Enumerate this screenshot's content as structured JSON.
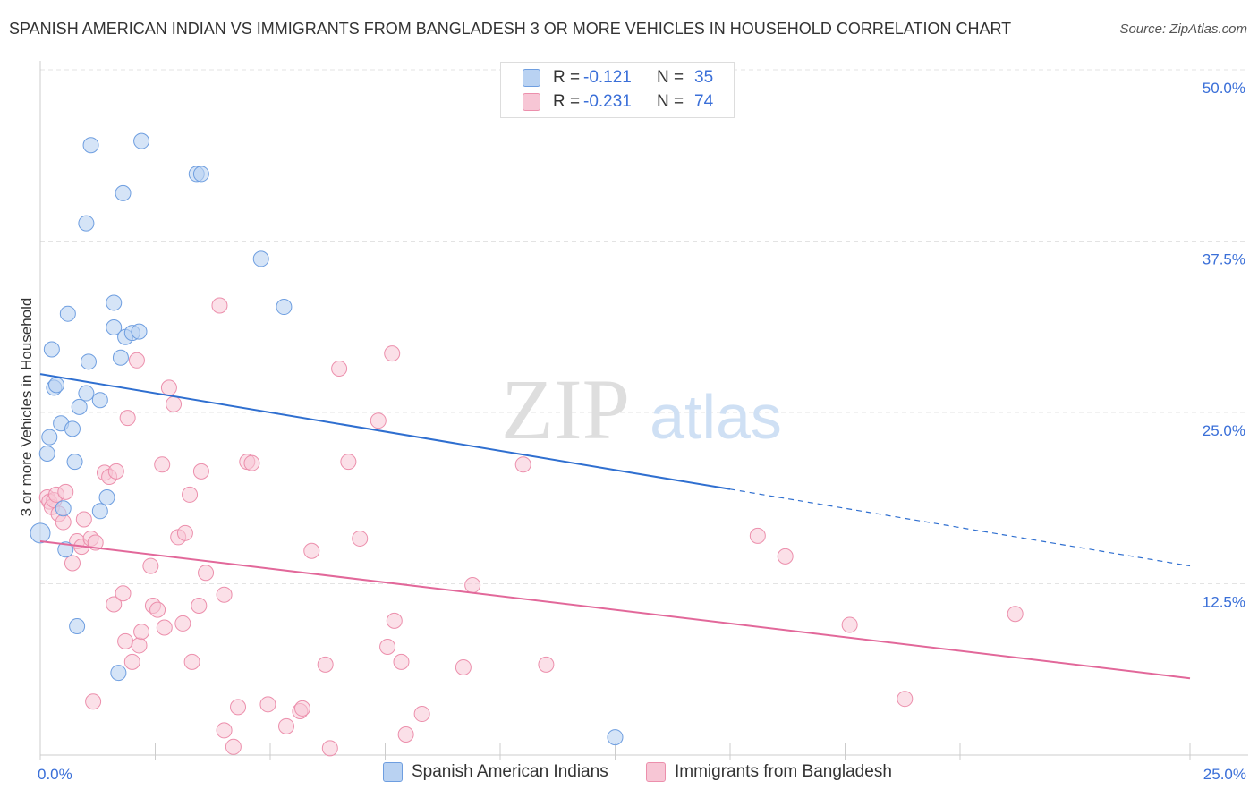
{
  "title": "SPANISH AMERICAN INDIAN VS IMMIGRANTS FROM BANGLADESH 3 OR MORE VEHICLES IN HOUSEHOLD CORRELATION CHART",
  "source": "Source: ZipAtlas.com",
  "watermark": {
    "zip": "ZIP",
    "atlas": "atlas"
  },
  "legend_top": [
    {
      "r_label": "R =",
      "r_value": "-0.121",
      "n_label": "N =",
      "n_value": "35"
    },
    {
      "r_label": "R =",
      "r_value": "-0.231",
      "n_label": "N =",
      "n_value": "74"
    }
  ],
  "legend_bottom": [
    "Spanish American Indians",
    "Immigrants from Bangladesh"
  ],
  "colors": {
    "blue_fill": "#b9d2f2",
    "blue_stroke": "#6e9ee0",
    "blue_line": "#2f6fd0",
    "pink_fill": "#f7c6d5",
    "pink_stroke": "#ec8fac",
    "pink_line": "#e2689a",
    "grid": "#e3e3e3",
    "tick_label": "#3a6fd8"
  },
  "chart_data": {
    "type": "scatter",
    "title": "SPANISH AMERICAN INDIAN VS IMMIGRANTS FROM BANGLADESH 3 OR MORE VEHICLES IN HOUSEHOLD CORRELATION CHART",
    "xlabel": "",
    "ylabel": "3 or more Vehicles in Household",
    "xlim": [
      0,
      25
    ],
    "ylim": [
      0,
      50
    ],
    "x_tick_labels": [
      "0.0%",
      "25.0%"
    ],
    "y_tick_labels": [
      "12.5%",
      "25.0%",
      "37.5%",
      "50.0%"
    ],
    "y_ticks": [
      12.5,
      25,
      37.5,
      50
    ],
    "series": [
      {
        "name": "Spanish American Indians",
        "r": -0.121,
        "n": 35,
        "trend": {
          "x0": 0,
          "y0": 27.8,
          "x1": 15.0,
          "y1": 19.4,
          "dash_x1": 25.0,
          "dash_y1": 13.8
        },
        "points": [
          [
            0.0,
            16.2
          ],
          [
            0.15,
            22.0
          ],
          [
            0.2,
            23.2
          ],
          [
            0.25,
            29.6
          ],
          [
            0.3,
            26.8
          ],
          [
            0.35,
            27.0
          ],
          [
            0.45,
            24.2
          ],
          [
            0.5,
            18.0
          ],
          [
            0.55,
            15.0
          ],
          [
            0.6,
            32.2
          ],
          [
            0.7,
            23.8
          ],
          [
            0.75,
            21.4
          ],
          [
            0.8,
            9.4
          ],
          [
            0.85,
            25.4
          ],
          [
            1.0,
            26.4
          ],
          [
            1.05,
            28.7
          ],
          [
            1.1,
            44.5
          ],
          [
            1.0,
            38.8
          ],
          [
            1.3,
            25.9
          ],
          [
            1.3,
            17.8
          ],
          [
            1.45,
            18.8
          ],
          [
            1.6,
            31.2
          ],
          [
            1.6,
            33.0
          ],
          [
            1.7,
            6.0
          ],
          [
            1.75,
            29.0
          ],
          [
            1.8,
            41.0
          ],
          [
            1.85,
            30.5
          ],
          [
            2.0,
            30.8
          ],
          [
            2.15,
            30.9
          ],
          [
            2.2,
            44.8
          ],
          [
            3.4,
            42.4
          ],
          [
            3.5,
            42.4
          ],
          [
            4.8,
            36.2
          ],
          [
            5.3,
            32.7
          ],
          [
            12.5,
            1.3
          ]
        ]
      },
      {
        "name": "Immigrants from Bangladesh",
        "r": -0.231,
        "n": 74,
        "trend": {
          "x0": 0,
          "y0": 15.6,
          "x1": 25.0,
          "y1": 5.6
        },
        "points": [
          [
            0.15,
            18.8
          ],
          [
            0.2,
            18.5
          ],
          [
            0.25,
            18.1
          ],
          [
            0.3,
            18.6
          ],
          [
            0.35,
            19.0
          ],
          [
            0.4,
            17.6
          ],
          [
            0.5,
            17.0
          ],
          [
            0.55,
            19.2
          ],
          [
            0.7,
            14.0
          ],
          [
            0.8,
            15.6
          ],
          [
            0.9,
            15.2
          ],
          [
            0.95,
            17.2
          ],
          [
            1.1,
            15.8
          ],
          [
            1.15,
            3.9
          ],
          [
            1.2,
            15.5
          ],
          [
            1.4,
            20.6
          ],
          [
            1.5,
            20.3
          ],
          [
            1.6,
            11.0
          ],
          [
            1.65,
            20.7
          ],
          [
            1.8,
            11.8
          ],
          [
            1.85,
            8.3
          ],
          [
            1.9,
            24.6
          ],
          [
            2.0,
            6.8
          ],
          [
            2.1,
            28.8
          ],
          [
            2.15,
            8.0
          ],
          [
            2.2,
            9.0
          ],
          [
            2.4,
            13.8
          ],
          [
            2.45,
            10.9
          ],
          [
            2.55,
            10.6
          ],
          [
            2.65,
            21.2
          ],
          [
            2.7,
            9.3
          ],
          [
            2.8,
            26.8
          ],
          [
            2.9,
            25.6
          ],
          [
            3.0,
            15.9
          ],
          [
            3.1,
            9.6
          ],
          [
            3.15,
            16.2
          ],
          [
            3.25,
            19.0
          ],
          [
            3.3,
            6.8
          ],
          [
            3.45,
            10.9
          ],
          [
            3.5,
            20.7
          ],
          [
            3.6,
            13.3
          ],
          [
            3.9,
            32.8
          ],
          [
            4.0,
            11.7
          ],
          [
            4.0,
            1.8
          ],
          [
            4.2,
            0.6
          ],
          [
            4.3,
            3.5
          ],
          [
            4.5,
            21.4
          ],
          [
            4.6,
            21.3
          ],
          [
            4.95,
            3.7
          ],
          [
            5.35,
            2.1
          ],
          [
            5.65,
            3.2
          ],
          [
            5.7,
            3.4
          ],
          [
            5.9,
            14.9
          ],
          [
            6.2,
            6.6
          ],
          [
            6.3,
            0.5
          ],
          [
            6.5,
            28.2
          ],
          [
            6.7,
            21.4
          ],
          [
            6.95,
            15.8
          ],
          [
            7.35,
            24.4
          ],
          [
            7.55,
            7.9
          ],
          [
            7.65,
            29.3
          ],
          [
            7.7,
            9.8
          ],
          [
            7.85,
            6.8
          ],
          [
            7.95,
            1.5
          ],
          [
            8.3,
            3.0
          ],
          [
            9.2,
            6.4
          ],
          [
            9.4,
            12.4
          ],
          [
            10.5,
            21.2
          ],
          [
            11.0,
            6.6
          ],
          [
            15.6,
            16.0
          ],
          [
            16.2,
            14.5
          ],
          [
            17.6,
            9.5
          ],
          [
            18.8,
            4.1
          ],
          [
            21.2,
            10.3
          ]
        ]
      }
    ]
  }
}
